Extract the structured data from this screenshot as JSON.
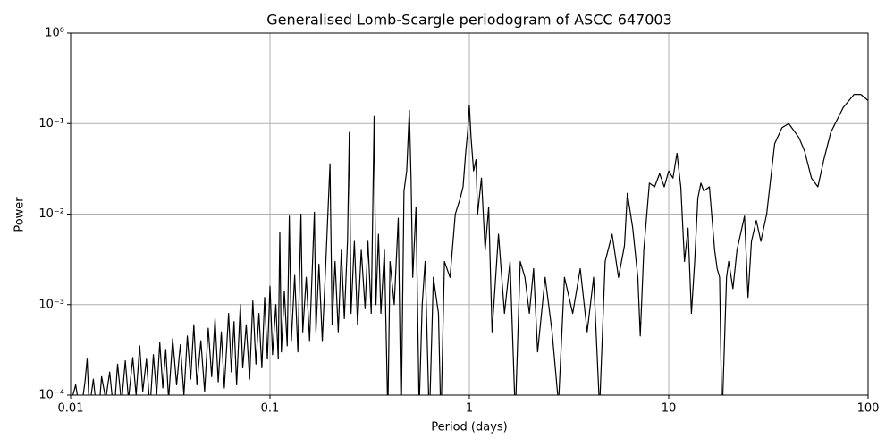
{
  "chart_data": {
    "type": "line",
    "title": "Generalised Lomb-Scargle periodogram of ASCC 647003",
    "xlabel": "Period (days)",
    "ylabel": "Power",
    "xscale": "log",
    "yscale": "log",
    "grid": true,
    "color": "#000000",
    "xlim": [
      0.01,
      100
    ],
    "xticks": [
      0.01,
      0.1,
      1,
      10,
      100
    ],
    "ylim": [
      0.0001,
      1
    ],
    "yticks": [
      {
        "value": 0.0001,
        "label": "10⁻⁴"
      },
      {
        "value": 0.001,
        "label": "10⁻³"
      },
      {
        "value": 0.01,
        "label": "10⁻²"
      },
      {
        "value": 0.1,
        "label": "10⁻¹"
      },
      {
        "value": 1,
        "label": "10⁰"
      }
    ],
    "x": [
      0.01,
      0.0106,
      0.0112,
      0.0118,
      0.0121,
      0.0124,
      0.013,
      0.0137,
      0.0143,
      0.015,
      0.0157,
      0.0165,
      0.0172,
      0.018,
      0.0188,
      0.0195,
      0.0205,
      0.0213,
      0.0222,
      0.023,
      0.024,
      0.025,
      0.026,
      0.027,
      0.028,
      0.029,
      0.03,
      0.031,
      0.0325,
      0.034,
      0.0355,
      0.037,
      0.0385,
      0.04,
      0.0415,
      0.043,
      0.045,
      0.047,
      0.049,
      0.051,
      0.053,
      0.055,
      0.057,
      0.059,
      0.062,
      0.064,
      0.066,
      0.068,
      0.071,
      0.073,
      0.076,
      0.079,
      0.082,
      0.085,
      0.088,
      0.091,
      0.094,
      0.097,
      0.1,
      0.103,
      0.107,
      0.11,
      0.112,
      0.114,
      0.118,
      0.122,
      0.125,
      0.128,
      0.133,
      0.138,
      0.143,
      0.146,
      0.152,
      0.158,
      0.167,
      0.17,
      0.176,
      0.183,
      0.19,
      0.2,
      0.205,
      0.212,
      0.22,
      0.228,
      0.236,
      0.245,
      0.25,
      0.255,
      0.265,
      0.275,
      0.287,
      0.3,
      0.31,
      0.322,
      0.333,
      0.34,
      0.35,
      0.36,
      0.375,
      0.39,
      0.4,
      0.42,
      0.44,
      0.455,
      0.47,
      0.485,
      0.5,
      0.51,
      0.52,
      0.54,
      0.56,
      0.58,
      0.6,
      0.63,
      0.66,
      0.7,
      0.72,
      0.75,
      0.8,
      0.85,
      0.9,
      0.93,
      0.96,
      0.98,
      1,
      1.02,
      1.05,
      1.08,
      1.1,
      1.15,
      1.2,
      1.25,
      1.3,
      1.4,
      1.5,
      1.6,
      1.7,
      1.8,
      1.9,
      2,
      2.1,
      2.2,
      2.4,
      2.6,
      2.8,
      3,
      3.3,
      3.6,
      3.9,
      4.2,
      4.5,
      4.8,
      5.2,
      5.6,
      6,
      6.2,
      6.6,
      7,
      7.2,
      7.5,
      8,
      8.5,
      9,
      9.5,
      10,
      10.5,
      11,
      11.5,
      12,
      12.5,
      13,
      13.5,
      14,
      14.5,
      15,
      16,
      17,
      17.5,
      18,
      18.5,
      19.5,
      20,
      21,
      22,
      24,
      25,
      26,
      27.5,
      29,
      31,
      34,
      37,
      40,
      45,
      48,
      52,
      56,
      60,
      65,
      75,
      85,
      92,
      100
    ],
    "values": [
      8e-05,
      0.00013,
      6e-05,
      0.00014,
      0.00025,
      7e-05,
      0.00015,
      5e-05,
      0.00016,
      9e-05,
      0.00018,
      6e-05,
      0.00022,
      8e-05,
      0.00024,
      9e-05,
      0.00026,
      0.0001,
      0.00035,
      0.00011,
      0.00025,
      7e-05,
      0.00028,
      0.0001,
      0.00038,
      0.00012,
      0.00032,
      9e-05,
      0.00042,
      0.00013,
      0.00036,
      0.0001,
      0.00045,
      0.00015,
      0.0006,
      0.00013,
      0.0004,
      0.00011,
      0.00055,
      0.00016,
      0.0007,
      0.00014,
      0.0005,
      0.00012,
      0.0008,
      0.00018,
      0.00065,
      0.00013,
      0.001,
      0.0002,
      0.0006,
      0.00015,
      0.0011,
      0.00022,
      0.0008,
      0.0002,
      0.0012,
      0.00025,
      0.0016,
      0.00028,
      0.001,
      0.00025,
      0.0063,
      0.0003,
      0.0014,
      0.00035,
      0.0095,
      0.0004,
      0.0021,
      0.0003,
      0.01,
      0.0005,
      0.002,
      0.0004,
      0.0105,
      0.0005,
      0.0028,
      0.0004,
      0.0025,
      0.036,
      0.0006,
      0.003,
      0.0005,
      0.004,
      0.0007,
      0.0052,
      0.08,
      0.0008,
      0.005,
      0.0006,
      0.004,
      0.0009,
      0.005,
      0.0008,
      0.12,
      0.001,
      0.006,
      0.0008,
      0.004,
      6e-05,
      0.003,
      0.001,
      0.009,
      5e-05,
      0.018,
      0.03,
      0.14,
      0.025,
      0.002,
      0.012,
      7e-05,
      0.001,
      0.003,
      5e-05,
      0.002,
      0.0008,
      5e-05,
      0.003,
      0.002,
      0.01,
      0.015,
      0.02,
      0.05,
      0.08,
      0.16,
      0.07,
      0.03,
      0.04,
      0.01,
      0.025,
      0.004,
      0.012,
      0.0005,
      0.006,
      0.0008,
      0.003,
      6e-05,
      0.003,
      0.002,
      0.0008,
      0.0025,
      0.0003,
      0.002,
      0.0005,
      8e-05,
      0.002,
      0.0008,
      0.0025,
      0.0005,
      0.002,
      7e-05,
      0.003,
      0.006,
      0.002,
      0.0045,
      0.017,
      0.007,
      0.002,
      0.00045,
      0.004,
      0.022,
      0.02,
      0.028,
      0.02,
      0.03,
      0.025,
      0.047,
      0.02,
      0.003,
      0.007,
      0.0008,
      0.003,
      0.015,
      0.022,
      0.018,
      0.02,
      0.004,
      0.0025,
      0.002,
      5e-05,
      0.002,
      0.003,
      0.0015,
      0.004,
      0.0095,
      0.0012,
      0.005,
      0.0085,
      0.005,
      0.01,
      0.06,
      0.09,
      0.1,
      0.07,
      0.05,
      0.025,
      0.02,
      0.04,
      0.08,
      0.15,
      0.21,
      0.21,
      0.18
    ]
  }
}
